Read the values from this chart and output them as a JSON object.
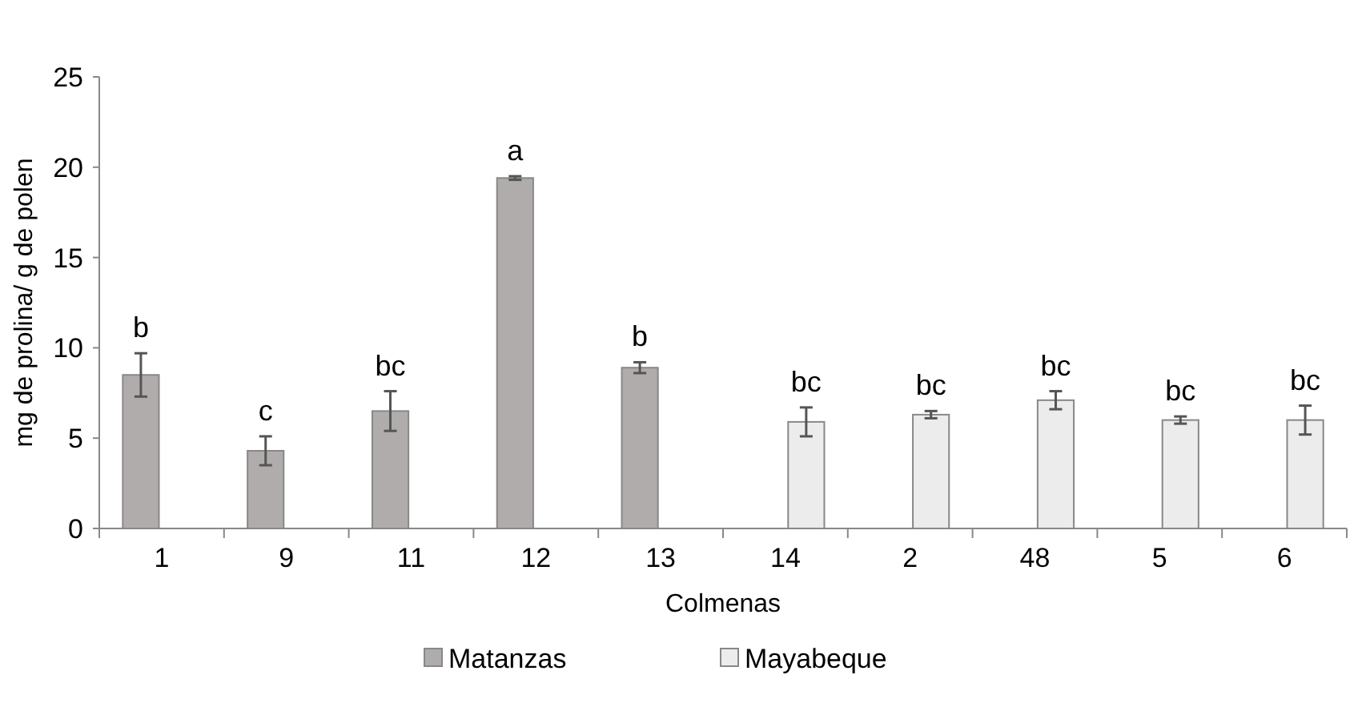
{
  "chart_data": {
    "type": "bar",
    "xlabel": "Colmenas",
    "ylabel": "mg de prolina/ g de polen",
    "categories": [
      "1",
      "9",
      "11",
      "12",
      "13",
      "14",
      "2",
      "48",
      "5",
      "6"
    ],
    "series": [
      {
        "name": "Matanzas",
        "color": "#b0acac",
        "values": [
          8.5,
          4.3,
          6.5,
          19.4,
          8.9,
          null,
          null,
          null,
          null,
          null
        ],
        "errors": [
          1.2,
          0.8,
          1.1,
          0.1,
          0.3,
          null,
          null,
          null,
          null,
          null
        ]
      },
      {
        "name": "Mayabeque",
        "color": "#ececec",
        "values": [
          null,
          null,
          null,
          null,
          null,
          5.9,
          6.3,
          7.1,
          6.0,
          6.0
        ],
        "errors": [
          null,
          null,
          null,
          null,
          null,
          0.8,
          0.2,
          0.5,
          0.2,
          0.8
        ]
      }
    ],
    "ylim": [
      0,
      25
    ],
    "yticks": [
      0,
      5,
      10,
      15,
      20,
      25
    ],
    "grid": false,
    "legend": "bottom",
    "annotations": [
      {
        "text": "b",
        "x": "1",
        "y": 8.5
      },
      {
        "text": "c",
        "x": "9",
        "y": 4.3
      },
      {
        "text": "bc",
        "x": "11",
        "y": 6.5
      },
      {
        "text": "a",
        "x": "12",
        "y": 19.4
      },
      {
        "text": "b",
        "x": "13",
        "y": 8.9
      },
      {
        "text": "bc",
        "x": "14",
        "y": 5.9
      },
      {
        "text": "bc",
        "x": "2",
        "y": 6.3
      },
      {
        "text": "bc",
        "x": "48",
        "y": 7.1
      },
      {
        "text": "bc",
        "x": "5",
        "y": 6.0
      },
      {
        "text": "bc",
        "x": "6",
        "y": 6.0
      }
    ]
  }
}
